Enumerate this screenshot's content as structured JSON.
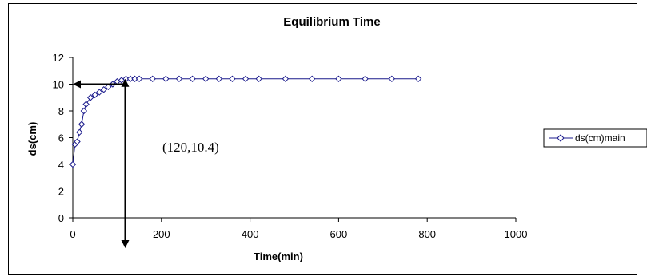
{
  "chart_data": {
    "type": "scatter",
    "title": "Equilibrium Time",
    "xlabel": "Time(min)",
    "ylabel": "ds(cm)",
    "xlim": [
      0,
      1000
    ],
    "ylim": [
      0,
      12
    ],
    "x_ticks": [
      0,
      200,
      400,
      600,
      800,
      1000
    ],
    "y_ticks": [
      0,
      2,
      4,
      6,
      8,
      10,
      12
    ],
    "grid": false,
    "legend_placement": "right",
    "series": [
      {
        "name": "ds(cm)main",
        "color": "#1a1a8c",
        "marker": "diamond",
        "x": [
          0,
          5,
          10,
          15,
          20,
          25,
          30,
          40,
          50,
          60,
          70,
          80,
          90,
          100,
          110,
          120,
          130,
          140,
          150,
          180,
          210,
          240,
          270,
          300,
          330,
          360,
          390,
          420,
          480,
          540,
          600,
          660,
          720,
          780
        ],
        "y": [
          4.0,
          5.5,
          5.7,
          6.4,
          7.0,
          8.0,
          8.5,
          9.0,
          9.2,
          9.4,
          9.6,
          9.8,
          10.0,
          10.2,
          10.3,
          10.4,
          10.4,
          10.4,
          10.4,
          10.4,
          10.4,
          10.4,
          10.4,
          10.4,
          10.4,
          10.4,
          10.4,
          10.4,
          10.4,
          10.4,
          10.4,
          10.4,
          10.4,
          10.4
        ]
      }
    ],
    "annotation": {
      "text": "(120,10.4)",
      "point": [
        120,
        10.4
      ]
    }
  }
}
